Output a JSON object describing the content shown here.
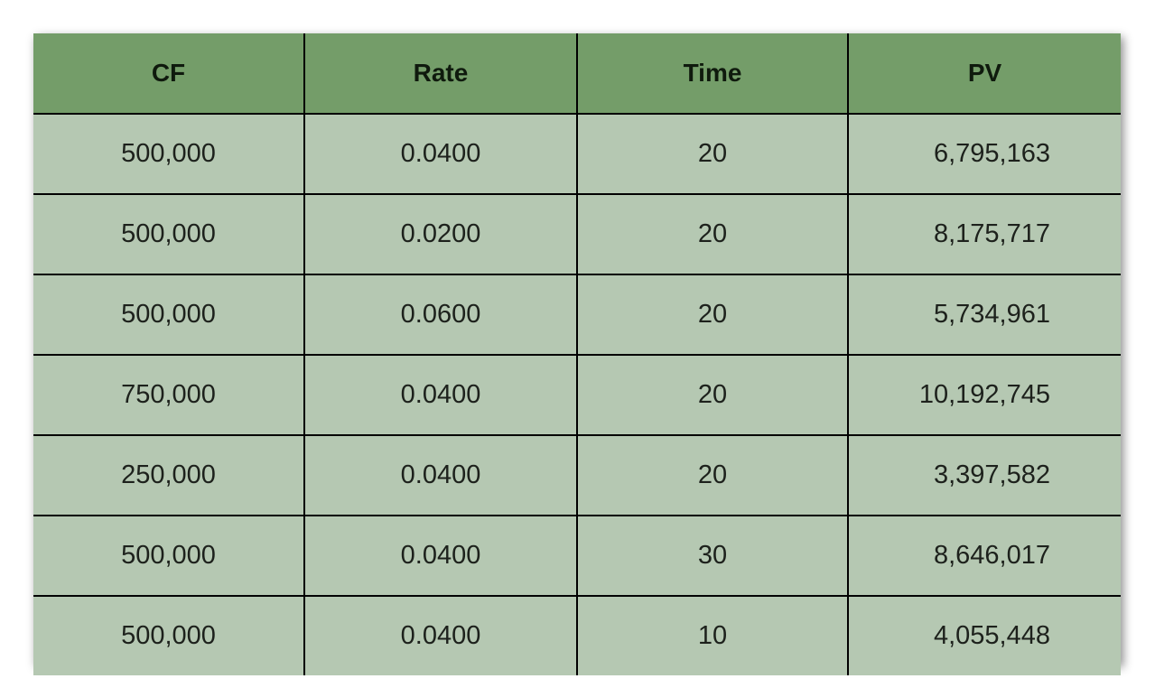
{
  "table": {
    "headers": [
      "CF",
      "Rate",
      "Time",
      "PV"
    ],
    "rows": [
      [
        "500,000",
        "0.0400",
        "20",
        "6,795,163"
      ],
      [
        "500,000",
        "0.0200",
        "20",
        "8,175,717"
      ],
      [
        "500,000",
        "0.0600",
        "20",
        "5,734,961"
      ],
      [
        "750,000",
        "0.0400",
        "20",
        "10,192,745"
      ],
      [
        "250,000",
        "0.0400",
        "20",
        "3,397,582"
      ],
      [
        "500,000",
        "0.0400",
        "30",
        "8,646,017"
      ],
      [
        "500,000",
        "0.0400",
        "10",
        "4,055,448"
      ]
    ],
    "colors": {
      "header_bg": "#749d69",
      "cell_bg": "#b5c8b2",
      "grid": "#000000"
    }
  }
}
